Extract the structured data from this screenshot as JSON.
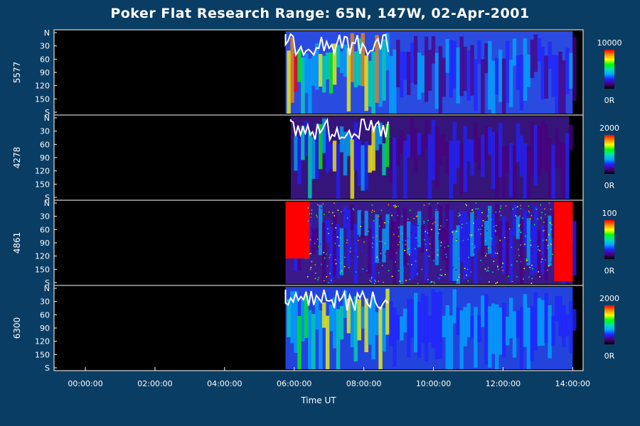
{
  "chart_data": {
    "type": "heatmap",
    "title": "Poker Flat Research Range: 65N, 147W, 02-Apr-2001",
    "xlabel": "Time UT",
    "x_ticks": [
      "00:00:00",
      "02:00:00",
      "04:00:00",
      "06:00:00",
      "08:00:00",
      "10:00:00",
      "12:00:00",
      "14:00:00"
    ],
    "x_range_hours": [
      -0.9,
      14.3
    ],
    "y_tick_labels": [
      "N",
      "30",
      "60",
      "90",
      "120",
      "150",
      "S"
    ],
    "y_range": [
      0,
      180
    ],
    "colormap": [
      "#000000",
      "#4a0080",
      "#2222ff",
      "#00aaff",
      "#00e0b0",
      "#00ff00",
      "#ffff00",
      "#ff8800",
      "#ff0000"
    ],
    "panels": [
      {
        "ylabel": "5577",
        "colorbar_max": "10000",
        "colorbar_min": "0R",
        "data_start_hour": 5.75,
        "data_end_hour": 14.0,
        "level": "high"
      },
      {
        "ylabel": "4278",
        "colorbar_max": "2000",
        "colorbar_min": "0R",
        "data_start_hour": 5.9,
        "data_end_hour": 13.9,
        "level": "low"
      },
      {
        "ylabel": "4861",
        "colorbar_max": "100",
        "colorbar_min": "0R",
        "data_start_hour": 5.75,
        "data_end_hour": 14.0,
        "level": "noise"
      },
      {
        "ylabel": "6300",
        "colorbar_max": "2000",
        "colorbar_min": "0R",
        "data_start_hour": 5.75,
        "data_end_hour": 14.0,
        "level": "medium"
      }
    ]
  }
}
